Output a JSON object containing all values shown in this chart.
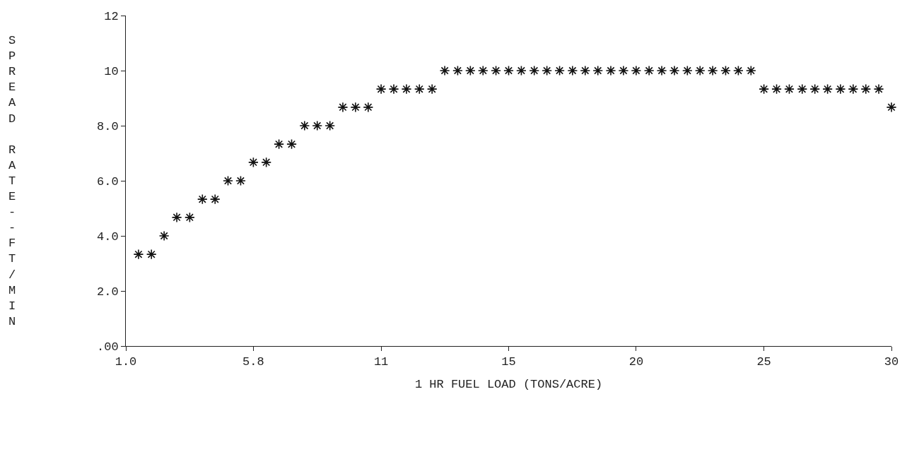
{
  "chart_data": {
    "type": "scatter",
    "xlabel": "1 HR FUEL LOAD (TONS/ACRE)",
    "ylabel": "SPREAD RATE--FT/MIN",
    "x": [
      1.48,
      1.97,
      2.45,
      2.93,
      3.42,
      3.9,
      4.38,
      4.87,
      5.35,
      5.83,
      6.32,
      6.8,
      7.28,
      7.77,
      8.25,
      8.73,
      9.22,
      9.7,
      10.18,
      10.67,
      11.15,
      11.63,
      12.12,
      12.6,
      13.08,
      13.57,
      14.05,
      14.53,
      15.02,
      15.5,
      15.98,
      16.47,
      16.95,
      17.43,
      17.92,
      18.4,
      18.88,
      19.37,
      19.85,
      20.33,
      20.82,
      21.3,
      21.78,
      22.27,
      22.75,
      23.23,
      23.72,
      24.2,
      24.68,
      25.17,
      25.65,
      26.13,
      26.62,
      27.1,
      27.58,
      28.07,
      28.55,
      29.03,
      29.52,
      30
    ],
    "values": [
      3.33,
      3.33,
      4.0,
      4.67,
      4.67,
      5.33,
      5.33,
      6.0,
      6.0,
      6.67,
      6.67,
      7.33,
      7.33,
      8.0,
      8.0,
      8.0,
      8.67,
      8.67,
      8.67,
      9.33,
      9.33,
      9.33,
      9.33,
      9.33,
      10,
      10,
      10,
      10,
      10,
      10,
      10,
      10,
      10,
      10,
      10,
      10,
      10,
      10,
      10,
      10,
      10,
      10,
      10,
      10,
      10,
      10,
      10,
      10,
      10,
      9.33,
      9.33,
      9.33,
      9.33,
      9.33,
      9.33,
      9.33,
      9.33,
      9.33,
      9.33,
      8.67
    ],
    "color": "#111111",
    "marker": "cross",
    "xlim": [
      1,
      30
    ],
    "xticks": [
      {
        "value": 1,
        "label": "1.0"
      },
      {
        "value": 5.83,
        "label": "5.8"
      },
      {
        "value": 10.67,
        "label": "11"
      },
      {
        "value": 15.5,
        "label": "15"
      },
      {
        "value": 20.33,
        "label": "20"
      },
      {
        "value": 25.17,
        "label": "25"
      },
      {
        "value": 30,
        "label": "30"
      }
    ],
    "ylim": [
      0,
      12
    ],
    "yticks": [
      {
        "value": 0,
        "label": ".00"
      },
      {
        "value": 2,
        "label": "2.0"
      },
      {
        "value": 4,
        "label": "4.0"
      },
      {
        "value": 6,
        "label": "6.0"
      },
      {
        "value": 8,
        "label": "8.0"
      },
      {
        "value": 10,
        "label": "10"
      },
      {
        "value": 12,
        "label": "12"
      }
    ]
  }
}
